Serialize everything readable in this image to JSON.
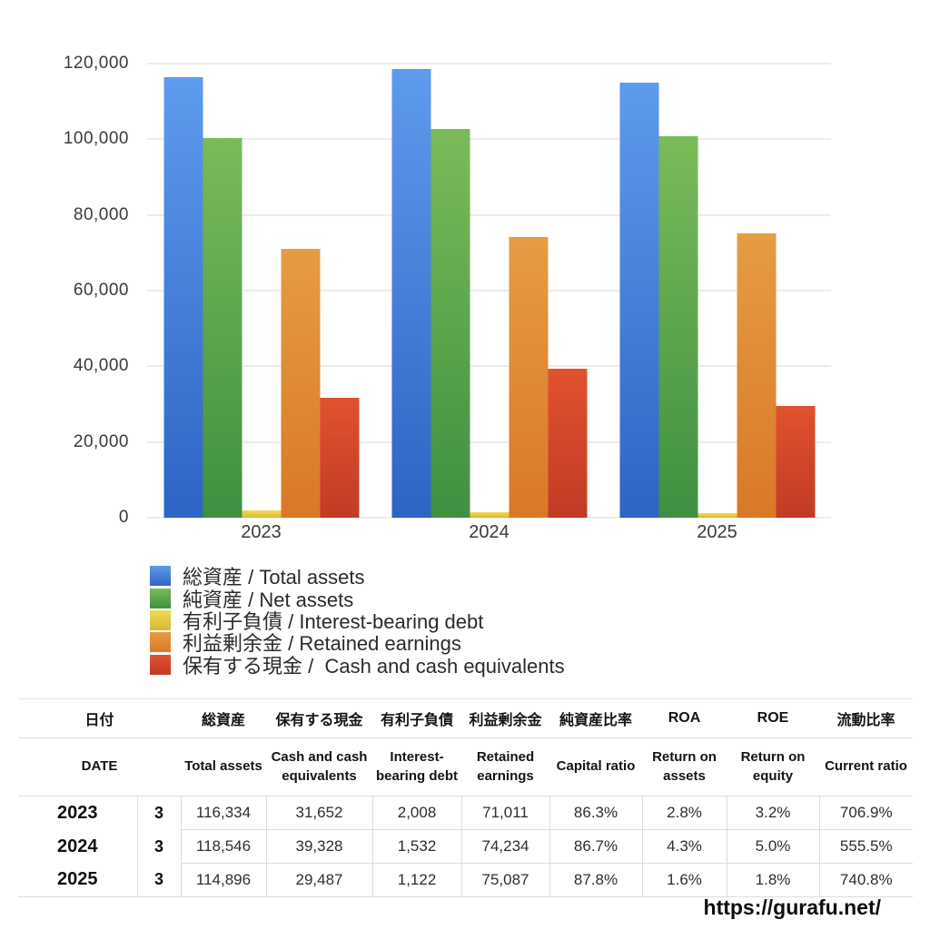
{
  "chart_data": {
    "type": "bar",
    "title": "",
    "xlabel": "",
    "ylabel": "",
    "categories": [
      "2023",
      "2024",
      "2025"
    ],
    "series": [
      {
        "key": "total-assets",
        "label": "総資産 / Total assets",
        "values": [
          116334,
          118546,
          114896
        ],
        "color_top": "#5D9BED",
        "color_bottom": "#2D64C5"
      },
      {
        "key": "net-assets",
        "label": "純資産 / Net assets",
        "values": [
          100396,
          102780,
          100879
        ],
        "color_top": "#7ABB59",
        "color_bottom": "#3E9041"
      },
      {
        "key": "interest-bearing-debt",
        "label": "有利子負債 / Interest-bearing debt",
        "values": [
          2008,
          1532,
          1122
        ],
        "color_top": "#EDDC55",
        "color_bottom": "#DCB732"
      },
      {
        "key": "retained-earnings",
        "label": "利益剰余金 / Retained earnings",
        "values": [
          71011,
          74234,
          75087
        ],
        "color_top": "#E69C43",
        "color_bottom": "#DA7827"
      },
      {
        "key": "cash",
        "label": "保有する現金 /  Cash and cash equivalents",
        "values": [
          31652,
          39328,
          29487
        ],
        "color_top": "#E1522E",
        "color_bottom": "#C23B25"
      }
    ],
    "ylim": [
      0,
      120000
    ],
    "ytick_interval": 20000,
    "ytick_labels": [
      "0",
      "20,000",
      "40,000",
      "60,000",
      "80,000",
      "100,000",
      "120,000"
    ],
    "grid": true,
    "legend_position": "bottom-left"
  },
  "table": {
    "header_row1": [
      "日付",
      "総資産",
      "保有する現金",
      "有利子負債",
      "利益剰余金",
      "純資産比率",
      "ROA",
      "ROE",
      "流動比率"
    ],
    "header_row2": [
      "DATE",
      "Total assets",
      "Cash and cash equivalents",
      "Interest-bearing debt",
      "Retained earnings",
      "Capital ratio",
      "Return on assets",
      "Return on equity",
      "Current ratio"
    ],
    "rows": [
      {
        "year": "2023",
        "month": "3",
        "values": [
          "116,334",
          "31,652",
          "2,008",
          "71,011",
          "86.3%",
          "2.8%",
          "3.2%",
          "706.9%"
        ]
      },
      {
        "year": "2024",
        "month": "3",
        "values": [
          "118,546",
          "39,328",
          "1,532",
          "74,234",
          "86.7%",
          "4.3%",
          "5.0%",
          "555.5%"
        ]
      },
      {
        "year": "2025",
        "month": "3",
        "values": [
          "114,896",
          "29,487",
          "1,122",
          "75,087",
          "87.8%",
          "1.6%",
          "1.8%",
          "740.8%"
        ]
      }
    ]
  },
  "footer": {
    "url": "https://gurafu.net/"
  }
}
